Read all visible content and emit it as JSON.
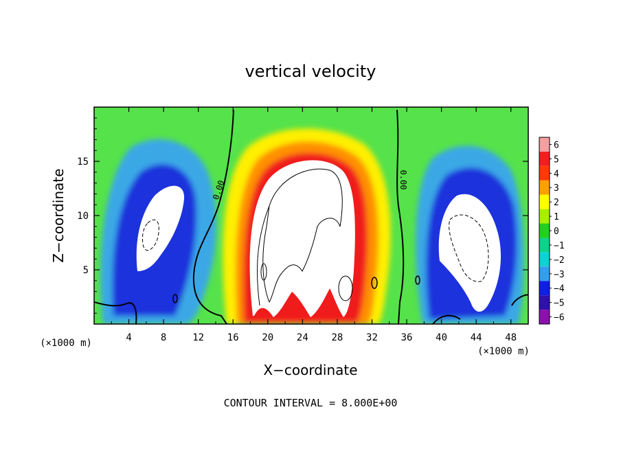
{
  "chart_data": {
    "type": "heatmap",
    "title": "vertical velocity",
    "xlabel": "X−coordinate",
    "ylabel": "Z−coordinate",
    "x_unit_label": "(×1000 m)",
    "y_unit_label": "(×1000 m)",
    "xlim": [
      0,
      50
    ],
    "ylim": [
      0,
      20
    ],
    "x_ticks": [
      4,
      8,
      12,
      16,
      20,
      24,
      28,
      32,
      36,
      40,
      44,
      48
    ],
    "y_ticks": [
      5,
      10,
      15
    ],
    "colorbar": {
      "levels": [
        6,
        5,
        4,
        3,
        2,
        1,
        0,
        -1,
        -2,
        -3,
        -4,
        -5,
        -6
      ],
      "labels": [
        "6",
        "5",
        "4",
        "3",
        "2",
        "1",
        "0",
        "−1",
        "−2",
        "−3",
        "−4",
        "−5",
        "−6"
      ],
      "colors": [
        "#f4a0a0",
        "#f02020",
        "#ff3a00",
        "#ffa000",
        "#ffff00",
        "#a8f000",
        "#1ed21e",
        "#10d28c",
        "#10d2d2",
        "#30a0f0",
        "#1020e0",
        "#3010b0",
        "#8c10b0"
      ]
    },
    "contour_labels": [
      "0.00",
      "0.00"
    ],
    "footer": "CONTOUR INTERVAL = 8.000E+00",
    "grid": false,
    "legend": "colorbar-right"
  },
  "colors": {
    "background": "#56e24a",
    "updraft_core": "#ffffff",
    "downdraft_core": "#ffffff"
  }
}
